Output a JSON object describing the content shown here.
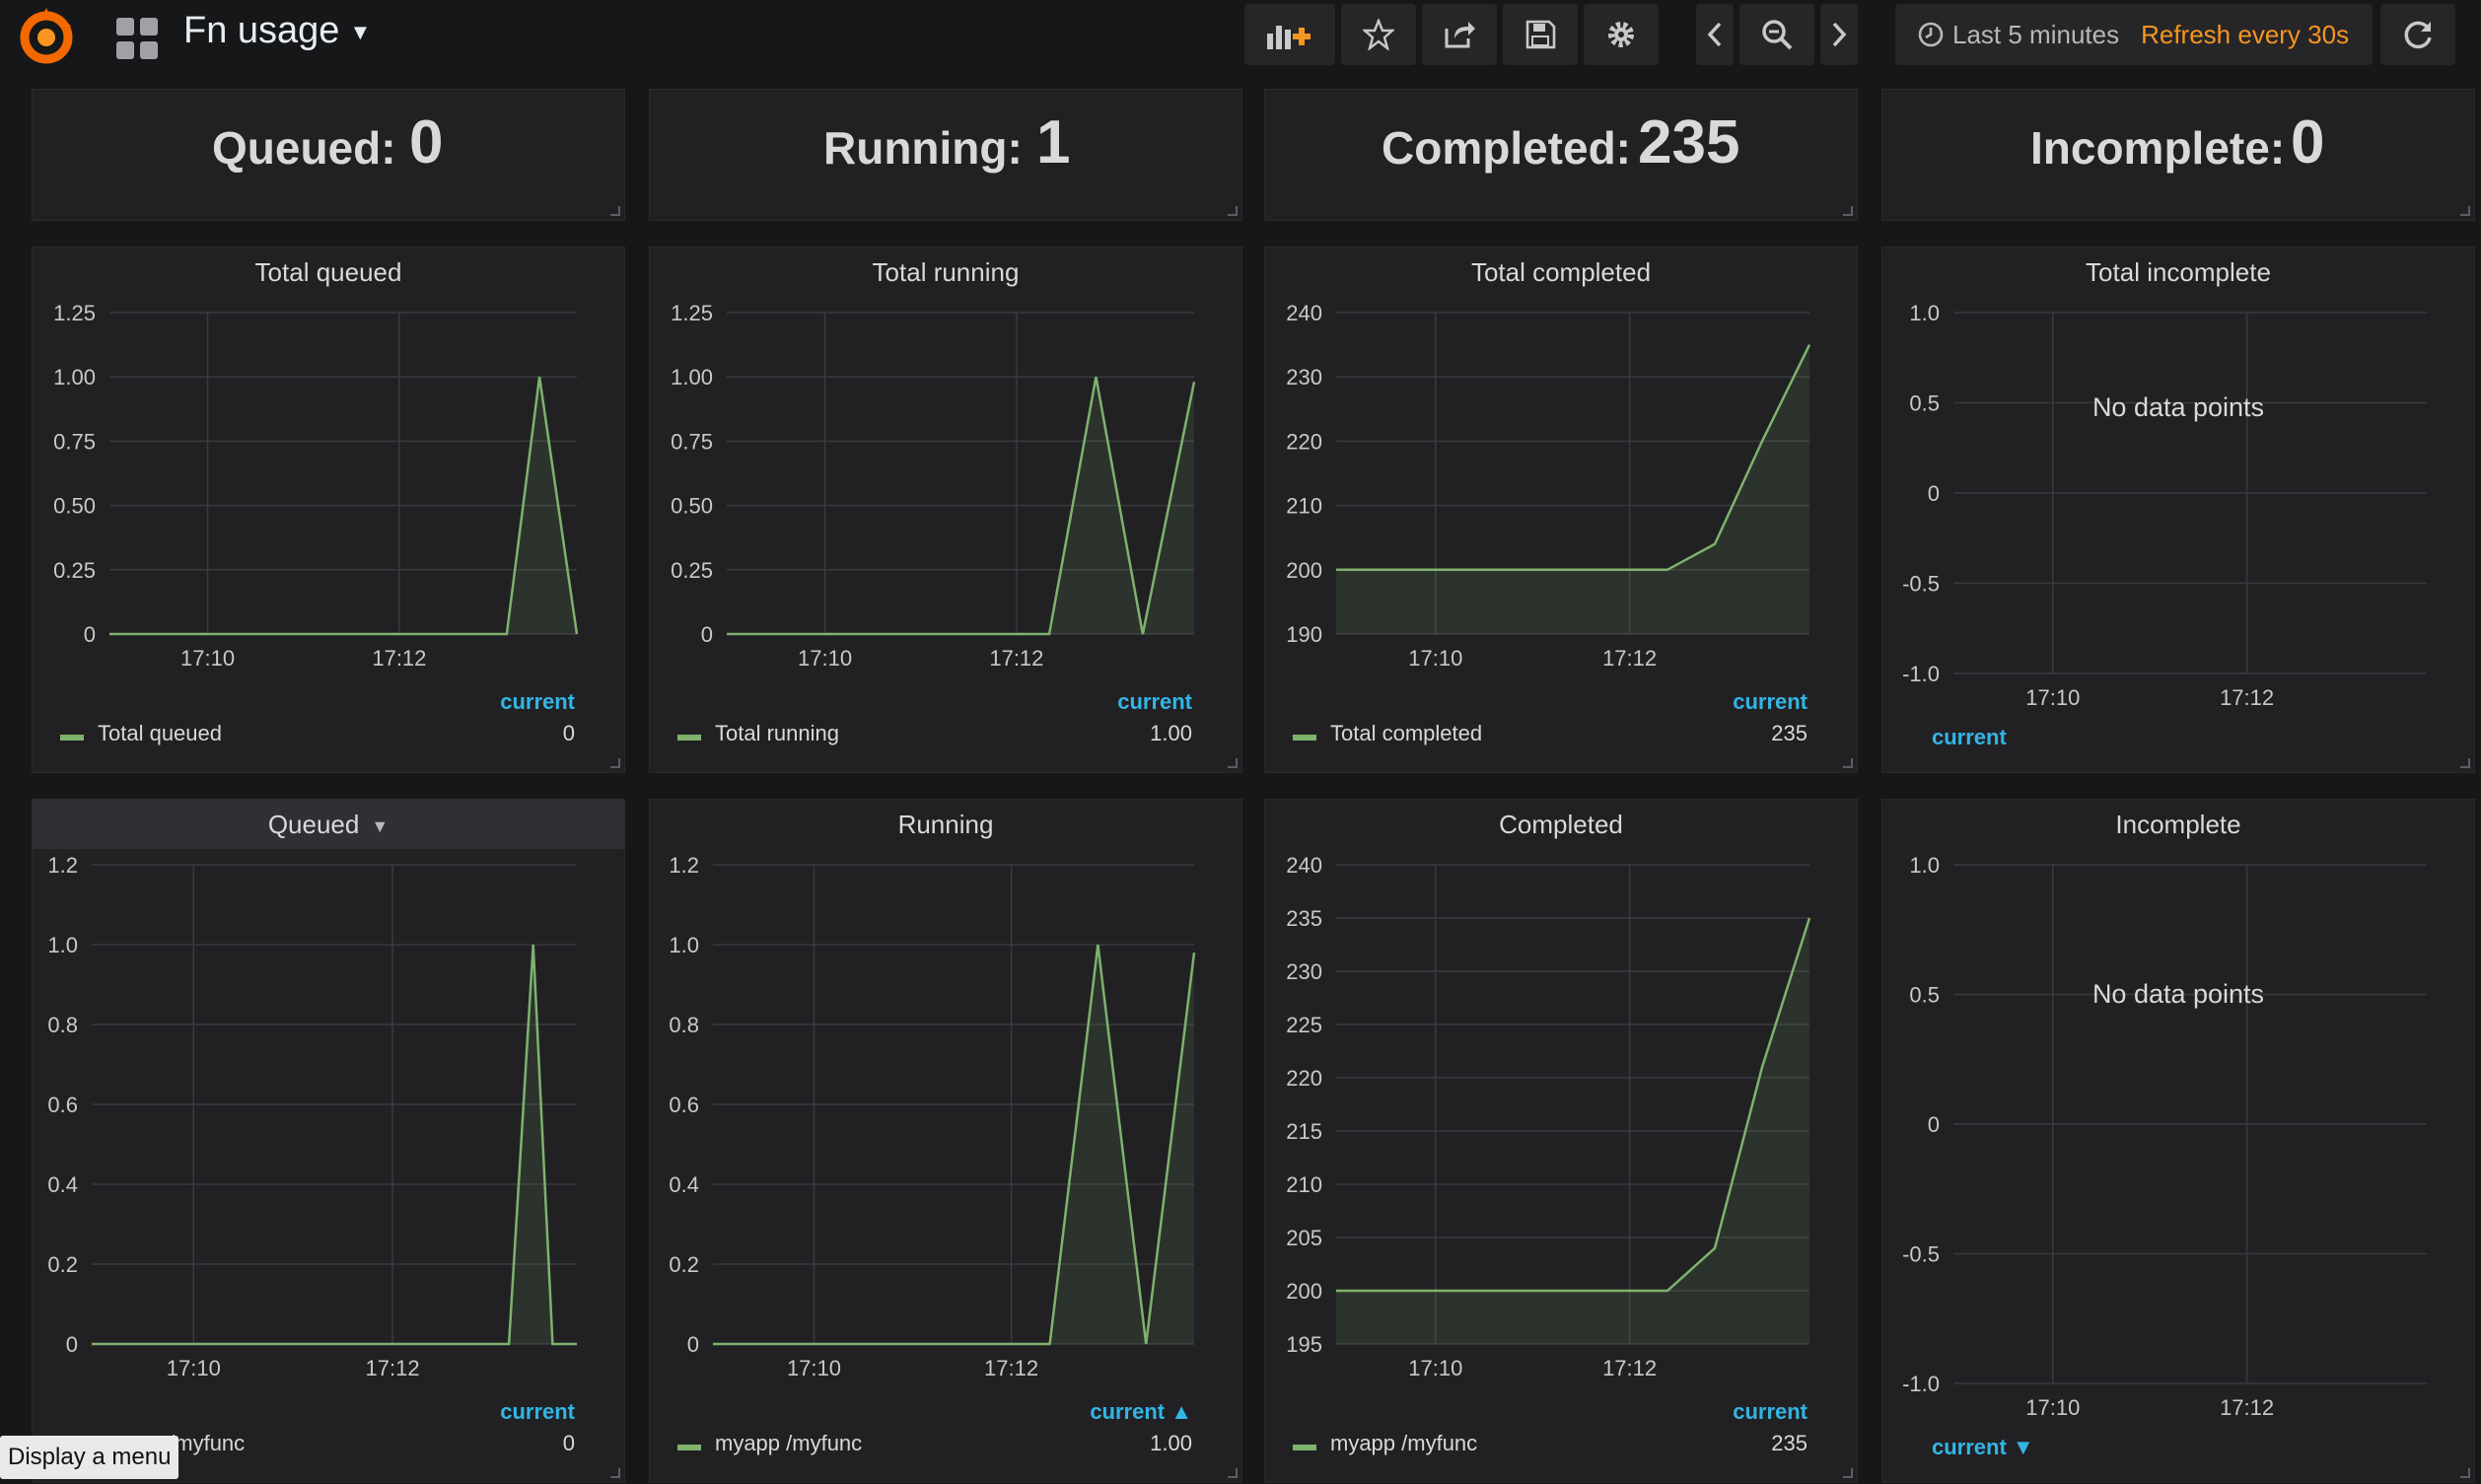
{
  "topbar": {
    "title": "Fn usage",
    "time_range": "Last 5 minutes",
    "refresh": "Refresh every 30s",
    "buttons": [
      "add-panel-icon",
      "star-icon",
      "share-icon",
      "save-icon",
      "gear-icon",
      "chevron-left-icon",
      "zoom-out-icon",
      "chevron-right-icon",
      "refresh-icon"
    ]
  },
  "stats": [
    {
      "label": "Queued:",
      "value": "0"
    },
    {
      "label": "Running:",
      "value": "1"
    },
    {
      "label": "Completed:",
      "value": "235"
    },
    {
      "label": "Incomplete:",
      "value": "0"
    }
  ],
  "chart_data": [
    {
      "type": "area",
      "title": "Total queued",
      "x_ticks": [
        "17:10",
        "17:12"
      ],
      "y_ticks": [
        "1.25",
        "1.00",
        "0.75",
        "0.50",
        "0.25",
        "0"
      ],
      "ylim": [
        0,
        1.25
      ],
      "series": [
        {
          "name": "Total queued",
          "x": [
            0,
            0.85,
            0.92,
            1.0
          ],
          "values": [
            0,
            0,
            1,
            0
          ],
          "current": "0"
        }
      ],
      "legend_header": "current",
      "color": "#7eb26d"
    },
    {
      "type": "area",
      "title": "Total running",
      "x_ticks": [
        "17:10",
        "17:12"
      ],
      "y_ticks": [
        "1.25",
        "1.00",
        "0.75",
        "0.50",
        "0.25",
        "0"
      ],
      "ylim": [
        0,
        1.25
      ],
      "series": [
        {
          "name": "Total running",
          "x": [
            0,
            0.69,
            0.79,
            0.89,
            1.0
          ],
          "values": [
            0,
            0,
            1,
            0,
            0.98
          ],
          "current": "1.00"
        }
      ],
      "legend_header": "current",
      "color": "#7eb26d"
    },
    {
      "type": "area",
      "title": "Total completed",
      "x_ticks": [
        "17:10",
        "17:12"
      ],
      "y_ticks": [
        "240",
        "230",
        "220",
        "210",
        "200",
        "190"
      ],
      "ylim": [
        190,
        240
      ],
      "series": [
        {
          "name": "Total completed",
          "x": [
            0,
            0.7,
            0.8,
            0.9,
            1.0
          ],
          "values": [
            200,
            200,
            204,
            220,
            235
          ],
          "current": "235"
        }
      ],
      "legend_header": "current",
      "color": "#7eb26d"
    },
    {
      "type": "line",
      "title": "Total incomplete",
      "x_ticks": [
        "17:10",
        "17:12"
      ],
      "y_ticks": [
        "1.0",
        "0.5",
        "0",
        "-0.5",
        "-1.0"
      ],
      "ylim": [
        -1,
        1
      ],
      "series": [],
      "no_data": "No data points",
      "legend_header": "current"
    },
    {
      "type": "area",
      "title": "Queued",
      "x_ticks": [
        "17:10",
        "17:12"
      ],
      "y_ticks": [
        "1.2",
        "1.0",
        "0.8",
        "0.6",
        "0.4",
        "0.2",
        "0"
      ],
      "ylim": [
        0,
        1.2
      ],
      "series": [
        {
          "name": "myapp /myfunc",
          "x": [
            0,
            0.86,
            0.91,
            0.95,
            1.0
          ],
          "values": [
            0,
            0,
            1,
            0,
            0
          ],
          "current": "0"
        }
      ],
      "legend_header": "current",
      "color": "#7eb26d",
      "dropdown": true
    },
    {
      "type": "area",
      "title": "Running",
      "x_ticks": [
        "17:10",
        "17:12"
      ],
      "y_ticks": [
        "1.2",
        "1.0",
        "0.8",
        "0.6",
        "0.4",
        "0.2",
        "0"
      ],
      "ylim": [
        0,
        1.2
      ],
      "series": [
        {
          "name": "myapp /myfunc",
          "x": [
            0,
            0.7,
            0.8,
            0.9,
            1.0
          ],
          "values": [
            0,
            0,
            1,
            0,
            0.98
          ],
          "current": "1.00"
        }
      ],
      "legend_header": "current",
      "legend_sort": "asc",
      "color": "#7eb26d"
    },
    {
      "type": "area",
      "title": "Completed",
      "x_ticks": [
        "17:10",
        "17:12"
      ],
      "y_ticks": [
        "240",
        "235",
        "230",
        "225",
        "220",
        "215",
        "210",
        "205",
        "200",
        "195"
      ],
      "ylim": [
        195,
        240
      ],
      "series": [
        {
          "name": "myapp /myfunc",
          "x": [
            0,
            0.7,
            0.8,
            0.9,
            1.0
          ],
          "values": [
            200,
            200,
            204,
            221,
            235
          ],
          "current": "235"
        }
      ],
      "legend_header": "current",
      "color": "#7eb26d"
    },
    {
      "type": "line",
      "title": "Incomplete",
      "x_ticks": [
        "17:10",
        "17:12"
      ],
      "y_ticks": [
        "1.0",
        "0.5",
        "0",
        "-0.5",
        "-1.0"
      ],
      "ylim": [
        -1,
        1
      ],
      "series": [],
      "no_data": "No data points",
      "legend_header": "current",
      "legend_sort": "desc"
    }
  ],
  "tooltip": "Display a menu"
}
